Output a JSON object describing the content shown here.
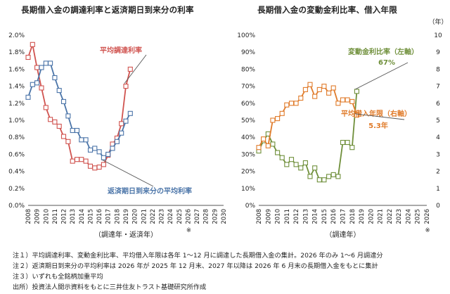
{
  "left_title": "長期借入金の調達利率と返済期日到来分の利率",
  "right_title": "長期借入金の変動金利比率、借入年限",
  "chart_data": [
    {
      "type": "line",
      "title": "長期借入金の調達利率と返済期日到来分の利率",
      "xlabel": "（調達年・返済年）",
      "ylabel": "",
      "ylim": [
        0,
        2.0
      ],
      "yticks": [
        "0.0%",
        "0.2%",
        "0.4%",
        "0.6%",
        "0.8%",
        "1.0%",
        "1.2%",
        "1.4%",
        "1.6%",
        "1.8%",
        "2.0%"
      ],
      "x_labels": [
        "2008",
        "2009",
        "2010",
        "2011",
        "2012",
        "2013",
        "2014",
        "2015",
        "2016",
        "2017",
        "2018",
        "2019",
        "2020",
        "2021",
        "2022",
        "2023",
        "2024",
        "2025",
        "2026",
        "2027",
        "2028",
        "2029",
        "2030"
      ],
      "x_note": "※",
      "x_note_year": 2026,
      "grid": false,
      "series": [
        {
          "name": "平均調達利率",
          "color": "#d0534f",
          "points": [
            [
              2008,
              1.74
            ],
            [
              2008.5,
              1.89
            ],
            [
              2009,
              1.62
            ],
            [
              2009.5,
              1.38
            ],
            [
              2010,
              1.15
            ],
            [
              2010.5,
              1.01
            ],
            [
              2011,
              0.98
            ],
            [
              2011.5,
              0.93
            ],
            [
              2012,
              0.81
            ],
            [
              2012.5,
              0.75
            ],
            [
              2013,
              0.52
            ],
            [
              2013.5,
              0.54
            ],
            [
              2014,
              0.54
            ],
            [
              2014.5,
              0.52
            ],
            [
              2015,
              0.46
            ],
            [
              2015.5,
              0.44
            ],
            [
              2016,
              0.45
            ],
            [
              2016.5,
              0.48
            ],
            [
              2017,
              0.59
            ],
            [
              2017.5,
              0.72
            ],
            [
              2018,
              0.79
            ],
            [
              2018.5,
              0.96
            ],
            [
              2019,
              1.4
            ],
            [
              2019.5,
              1.6
            ]
          ]
        },
        {
          "name": "返済期日到来分の平均利率",
          "color": "#4a74a8",
          "points": [
            [
              2008,
              1.27
            ],
            [
              2008.5,
              1.42
            ],
            [
              2009,
              1.44
            ],
            [
              2009.5,
              1.62
            ],
            [
              2010,
              1.67
            ],
            [
              2010.5,
              1.67
            ],
            [
              2011,
              1.5
            ],
            [
              2011.5,
              1.35
            ],
            [
              2012,
              1.22
            ],
            [
              2012.5,
              1.05
            ],
            [
              2013,
              0.88
            ],
            [
              2013.5,
              0.88
            ],
            [
              2014,
              0.77
            ],
            [
              2014.5,
              0.77
            ],
            [
              2015,
              0.65
            ],
            [
              2015.5,
              0.67
            ],
            [
              2016,
              0.63
            ],
            [
              2016.5,
              0.56
            ],
            [
              2017,
              0.6
            ],
            [
              2017.5,
              0.67
            ],
            [
              2018,
              0.75
            ],
            [
              2018.5,
              0.85
            ],
            [
              2019,
              0.99
            ],
            [
              2019.5,
              1.08
            ]
          ]
        }
      ],
      "annotations": [
        {
          "text": "平均調達利率",
          "series": 0
        },
        {
          "text": "返済期日到来分の平均利率",
          "series": 1
        }
      ]
    },
    {
      "type": "line",
      "title": "長期借入金の変動金利比率、借入年限",
      "xlabel": "（調達年）",
      "ylabel_right": "（年）",
      "ylim": [
        0,
        100
      ],
      "ylim_right": [
        0,
        10
      ],
      "yticks": [
        "0%",
        "10%",
        "20%",
        "30%",
        "40%",
        "50%",
        "60%",
        "70%",
        "80%",
        "90%",
        "100%"
      ],
      "yticks_right": [
        "0",
        "1",
        "2",
        "3",
        "4",
        "5",
        "6",
        "7",
        "8",
        "9",
        "10"
      ],
      "x_labels": [
        "2008",
        "2009",
        "2010",
        "2011",
        "2012",
        "2013",
        "2014",
        "2015",
        "2016",
        "2017",
        "2018",
        "2019",
        "2020",
        "2021",
        "2022",
        "2023",
        "2024",
        "2025",
        "2026"
      ],
      "x_note": "※",
      "x_note_year": 2026,
      "grid": false,
      "series": [
        {
          "name": "変動金利比率（左軸）",
          "color": "#6f8f3a",
          "axis": "left",
          "points": [
            [
              2008,
              32
            ],
            [
              2008.5,
              38
            ],
            [
              2009,
              42
            ],
            [
              2009.5,
              36
            ],
            [
              2010,
              31
            ],
            [
              2010.5,
              28
            ],
            [
              2011,
              24
            ],
            [
              2011.5,
              27
            ],
            [
              2012,
              24
            ],
            [
              2012.5,
              22
            ],
            [
              2013,
              25
            ],
            [
              2013.5,
              17
            ],
            [
              2014,
              22
            ],
            [
              2014.5,
              15
            ],
            [
              2015,
              15
            ],
            [
              2015.5,
              17
            ],
            [
              2016,
              18
            ],
            [
              2016.5,
              17
            ],
            [
              2017,
              37
            ],
            [
              2017.5,
              37
            ],
            [
              2018,
              34
            ],
            [
              2018.5,
              67
            ]
          ]
        },
        {
          "name": "平均借入年限（右軸）",
          "color": "#e07b2a",
          "axis": "right",
          "points": [
            [
              2008,
              3.4
            ],
            [
              2008.5,
              3.9
            ],
            [
              2009,
              3.5
            ],
            [
              2009.5,
              5.0
            ],
            [
              2010,
              5.1
            ],
            [
              2010.5,
              5.4
            ],
            [
              2011,
              5.9
            ],
            [
              2011.5,
              6.0
            ],
            [
              2012,
              6.0
            ],
            [
              2012.5,
              6.3
            ],
            [
              2013,
              6.8
            ],
            [
              2013.5,
              7.1
            ],
            [
              2014,
              6.4
            ],
            [
              2014.5,
              6.8
            ],
            [
              2015,
              7.0
            ],
            [
              2015.5,
              6.6
            ],
            [
              2016,
              6.9
            ],
            [
              2016.5,
              6.0
            ],
            [
              2017,
              6.2
            ],
            [
              2017.5,
              6.2
            ],
            [
              2018,
              6.1
            ],
            [
              2018.5,
              5.3
            ]
          ]
        }
      ],
      "annotations": [
        {
          "text": "変動金利比率（左軸）",
          "value": "67%",
          "series": 0
        },
        {
          "text": "平均借入年限（右軸）",
          "value": "5.3年",
          "series": 1
        }
      ]
    }
  ],
  "notes": [
    "注１）平均調達利率、変動金利比率、平均借入年限は各年 1～12 月に調達した長期借入金の集計。2026 年のみ 1～6 月調達分",
    "注２）返済期日到来分の平均利率は 2026 年が 2025 年 12 月末、2027 年以降は 2026 年 6 月末の長期借入金をもとに集計",
    "注３）いずれも全銘柄加重平均",
    "出所）投資法人開示資料をもとに三井住友トラスト基礎研究所作成"
  ]
}
